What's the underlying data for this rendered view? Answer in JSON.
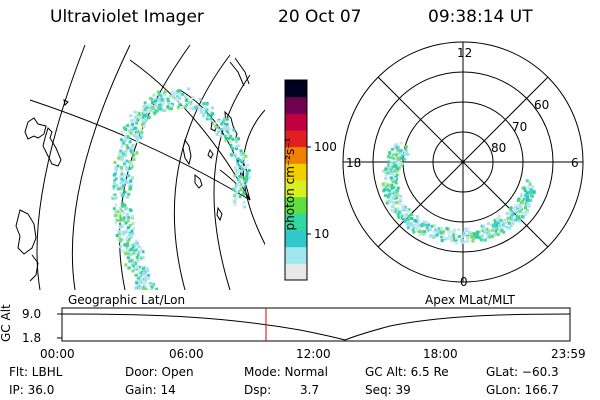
{
  "header": {
    "title": "Ultraviolet Imager",
    "date": "20 Oct 07",
    "time": "09:38:14 UT"
  },
  "colorbar": {
    "unit_label": "photon cm⁻²s⁻¹",
    "ticks": [
      "100",
      "10"
    ]
  },
  "geo_panel": {
    "label": "Geographic Lat/Lon"
  },
  "polar_panel": {
    "label": "Apex MLat/MLT",
    "mlt_labels": {
      "top": "12",
      "left": "18",
      "right": "6",
      "bottom": "0"
    },
    "lat_labels": [
      "60",
      "70",
      "80"
    ]
  },
  "timeline": {
    "ylabel": "GC Alt",
    "ytick_top": "9.0",
    "ytick_bottom": "1.8",
    "xticks": [
      "00:00",
      "06:00",
      "12:00",
      "18:00",
      "23:59"
    ],
    "current_time_hours": 9.637
  },
  "info": {
    "flt": "Flt: LBHL",
    "ip": "IP: 36.0",
    "door": "Door: Open",
    "gain": "Gain: 14",
    "mode": "Mode: Normal",
    "dsp_label": "Dsp:",
    "dsp_value": "3.7",
    "gc_alt": "GC Alt: 6.5 Re",
    "seq": "Seq: 39",
    "glat": "GLat: −60.3",
    "glon": "GLon: 166.7"
  },
  "colors": {
    "colorbar_stops": [
      "#e8e8e8",
      "#a0e8f0",
      "#30c8c8",
      "#30d8a0",
      "#60e040",
      "#d8f020",
      "#f0d000",
      "#f08000",
      "#e02020",
      "#c00040",
      "#700050",
      "#000020"
    ],
    "marker": "#e00000"
  }
}
